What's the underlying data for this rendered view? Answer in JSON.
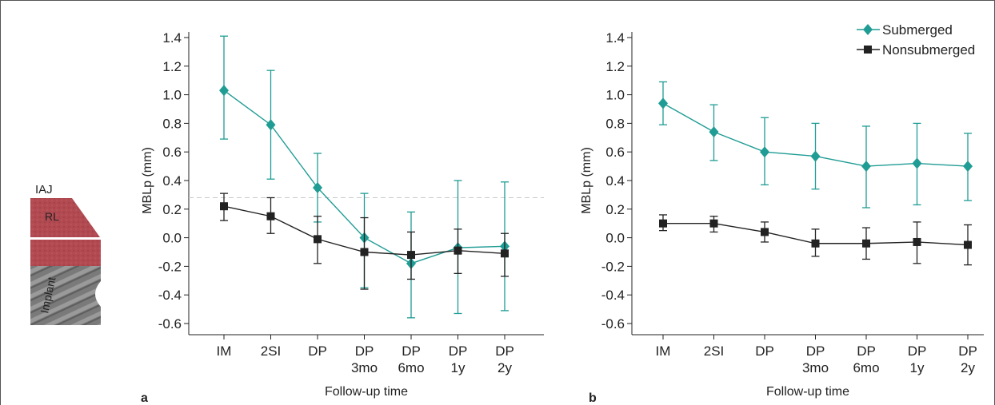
{
  "inset": {
    "iaj_label": "IAJ",
    "rl_label": "RL",
    "implant_label": "Implant",
    "colors": {
      "rl": "#b24a52",
      "implant": "#7d7d7d"
    }
  },
  "colors": {
    "submerged": "#1f9c94",
    "nonsubmerged": "#222222",
    "reference_line": "#c8c8c8"
  },
  "chart_data": [
    {
      "type": "line",
      "panel_label": "a",
      "xlabel": "Follow-up time",
      "ylabel": "MBLp (mm)",
      "ylim": [
        -0.65,
        1.42
      ],
      "yticks": [
        "1.4",
        "1.2",
        "1.0",
        "0.8",
        "0.6",
        "0.4",
        "0.2",
        "0.0",
        "-0.2",
        "-0.4",
        "-0.6"
      ],
      "categories": [
        "IM",
        "2SI",
        "DP",
        "DP 3mo",
        "DP 6mo",
        "DP 1y",
        "DP 2y"
      ],
      "tick_labels": [
        [
          "IM"
        ],
        [
          "2SI"
        ],
        [
          "DP"
        ],
        [
          "DP",
          "3mo"
        ],
        [
          "DP",
          "6mo"
        ],
        [
          "DP",
          "1y"
        ],
        [
          "DP",
          "2y"
        ]
      ],
      "reference_y": 0.28,
      "legend": false,
      "series": [
        {
          "name": "Submerged",
          "marker": "diamond",
          "values": [
            1.03,
            0.79,
            0.35,
            0.0,
            -0.18,
            -0.07,
            -0.06
          ],
          "err_low": [
            0.69,
            0.41,
            0.11,
            -0.35,
            -0.56,
            -0.53,
            -0.51
          ],
          "err_high": [
            1.41,
            1.17,
            0.59,
            0.31,
            0.18,
            0.4,
            0.39
          ]
        },
        {
          "name": "Nonsubmerged",
          "marker": "square",
          "values": [
            0.22,
            0.15,
            -0.01,
            -0.1,
            -0.12,
            -0.09,
            -0.11
          ],
          "err_low": [
            0.12,
            0.03,
            -0.18,
            -0.36,
            -0.29,
            -0.25,
            -0.27
          ],
          "err_high": [
            0.31,
            0.28,
            0.15,
            0.14,
            0.04,
            0.06,
            0.03
          ]
        }
      ]
    },
    {
      "type": "line",
      "panel_label": "b",
      "xlabel": "Follow-up time",
      "ylabel": "MBLp (mm)",
      "ylim": [
        -0.65,
        1.42
      ],
      "yticks": [
        "1.4",
        "1.2",
        "1.0",
        "0.8",
        "0.6",
        "0.4",
        "0.2",
        "0.0",
        "-0.2",
        "-0.4",
        "-0.6"
      ],
      "categories": [
        "IM",
        "2SI",
        "DP",
        "DP 3mo",
        "DP 6mo",
        "DP 1y",
        "DP 2y"
      ],
      "tick_labels": [
        [
          "IM"
        ],
        [
          "2SI"
        ],
        [
          "DP"
        ],
        [
          "DP",
          "3mo"
        ],
        [
          "DP",
          "6mo"
        ],
        [
          "DP",
          "1y"
        ],
        [
          "DP",
          "2y"
        ]
      ],
      "legend": true,
      "legend_position": "top-right",
      "series": [
        {
          "name": "Submerged",
          "marker": "diamond",
          "values": [
            0.94,
            0.74,
            0.6,
            0.57,
            0.5,
            0.52,
            0.5
          ],
          "err_low": [
            0.79,
            0.54,
            0.37,
            0.34,
            0.21,
            0.23,
            0.26
          ],
          "err_high": [
            1.09,
            0.93,
            0.84,
            0.8,
            0.78,
            0.8,
            0.73
          ]
        },
        {
          "name": "Nonsubmerged",
          "marker": "square",
          "values": [
            0.1,
            0.1,
            0.04,
            -0.04,
            -0.04,
            -0.03,
            -0.05
          ],
          "err_low": [
            0.05,
            0.04,
            -0.03,
            -0.13,
            -0.15,
            -0.18,
            -0.19
          ],
          "err_high": [
            0.16,
            0.15,
            0.11,
            0.06,
            0.07,
            0.11,
            0.09
          ]
        }
      ]
    }
  ]
}
